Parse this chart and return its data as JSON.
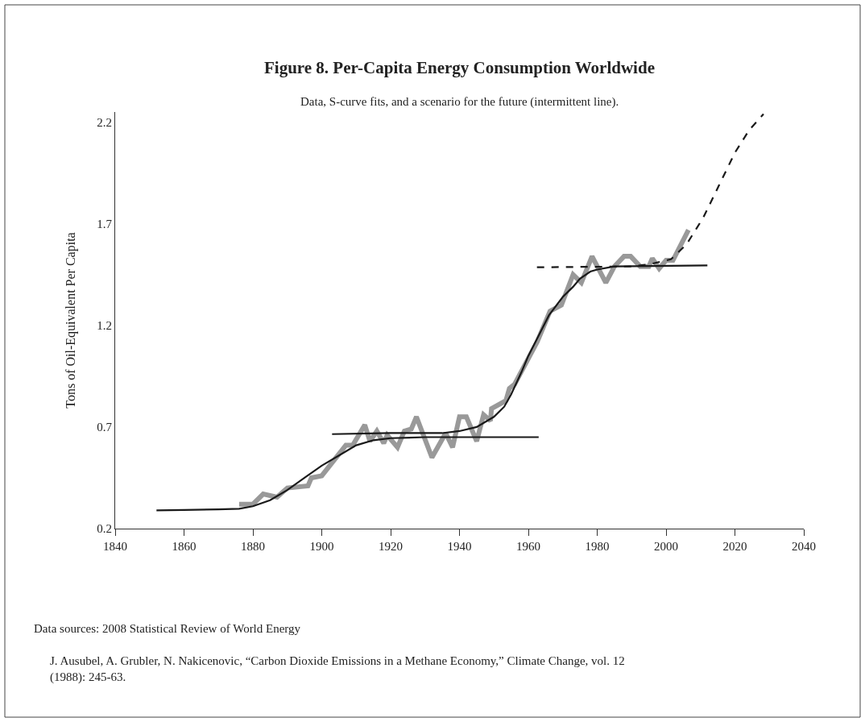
{
  "chart_data": {
    "type": "line",
    "title": "Figure 8. Per-Capita Energy Consumption Worldwide",
    "subtitle": "Data, S-curve fits, and a scenario for the future (intermittent line).",
    "ylabel": "Tons of Oil-Equivalent Per Capita",
    "xlim": [
      1840,
      2040
    ],
    "xticks": [
      1840,
      1860,
      1880,
      1900,
      1920,
      1940,
      1960,
      1980,
      2000,
      2020,
      2040
    ],
    "ylim": [
      0.2,
      2.25
    ],
    "yticks": [
      0.2,
      0.7,
      1.2,
      1.7,
      2.2
    ],
    "series": [
      {
        "color": "#999999",
        "line_style": "solid",
        "x": [
          1876,
          1880,
          1883,
          1887,
          1890,
          1896,
          1897,
          1900,
          1907,
          1909,
          1912.5,
          1914,
          1916,
          1918,
          1919,
          1922,
          1924,
          1926,
          1927.5,
          1932,
          1936,
          1938,
          1940,
          1942,
          1945,
          1947,
          1949,
          1949.3,
          1953.5,
          1954.5,
          1956,
          1962.6,
          1966.3,
          1969.6,
          1973,
          1975.4,
          1978.5,
          1982.5,
          1985,
          1987.8,
          1989.7,
          1992.5,
          1995,
          1996,
          1998,
          2000,
          2002,
          2006.5
        ],
        "values": [
          0.32,
          0.32,
          0.37,
          0.355,
          0.4,
          0.41,
          0.45,
          0.46,
          0.61,
          0.61,
          0.71,
          0.63,
          0.68,
          0.62,
          0.66,
          0.6,
          0.68,
          0.69,
          0.75,
          0.55,
          0.67,
          0.6,
          0.75,
          0.75,
          0.63,
          0.76,
          0.73,
          0.79,
          0.83,
          0.89,
          0.91,
          1.12,
          1.27,
          1.3,
          1.45,
          1.41,
          1.54,
          1.41,
          1.49,
          1.54,
          1.54,
          1.49,
          1.49,
          1.53,
          1.48,
          1.52,
          1.52,
          1.67
        ]
      },
      {
        "color": "#1a1a1a",
        "line_style": "solid",
        "x": [
          1852,
          1860,
          1870,
          1876,
          1880,
          1885,
          1890,
          1895,
          1900,
          1905,
          1910,
          1915,
          1920,
          1930,
          1963
        ],
        "values": [
          0.29,
          0.292,
          0.295,
          0.298,
          0.31,
          0.34,
          0.39,
          0.45,
          0.51,
          0.56,
          0.61,
          0.635,
          0.645,
          0.65,
          0.65
        ]
      },
      {
        "color": "#1a1a1a",
        "line_style": "solid",
        "x": [
          1903,
          1920,
          1935,
          1940,
          1945,
          1950,
          1953,
          1955,
          1958,
          1960,
          1963,
          1966,
          1970,
          1973,
          1975,
          1978,
          1980,
          1985,
          2012
        ],
        "values": [
          0.665,
          0.67,
          0.67,
          0.68,
          0.7,
          0.75,
          0.8,
          0.86,
          0.97,
          1.05,
          1.15,
          1.25,
          1.34,
          1.39,
          1.43,
          1.465,
          1.475,
          1.49,
          1.495
        ]
      },
      {
        "color": "#1a1a1a",
        "line_style": "dashed",
        "x": [
          1962.5,
          1990,
          1995,
          2001.4,
          2006,
          2010.8,
          2015.4,
          2020,
          2024.1,
          2028.3
        ],
        "values": [
          1.486,
          1.49,
          1.5,
          1.525,
          1.6,
          1.73,
          1.89,
          2.05,
          2.16,
          2.24
        ]
      }
    ],
    "annotations": [
      "Data sources: 2008 Statistical Review of World Energy",
      "J. Ausubel, A. Grubler, N. Nakicenovic, “Carbon Dioxide Emissions in a Methane Economy,” Climate Change, vol. 12 (1988): 245-63."
    ]
  }
}
